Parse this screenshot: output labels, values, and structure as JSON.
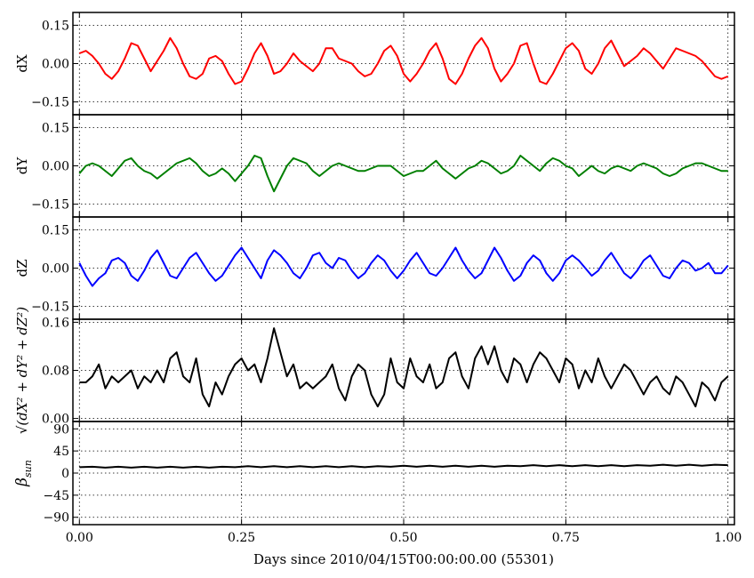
{
  "chart_data": {
    "type": "line",
    "xlabel": "Days since 2010/04/15T00:00:00.00 (55301)",
    "xlim": [
      -0.01,
      1.01
    ],
    "xticks": [
      0.0,
      0.25,
      0.5,
      0.75,
      1.0
    ],
    "xtick_labels": [
      "0.00",
      "0.25",
      "0.50",
      "0.75",
      "1.00"
    ],
    "grid": true,
    "panels": [
      {
        "id": "dx",
        "ylabel": "dX",
        "ylim": [
          -0.2,
          0.2
        ],
        "yticks": [
          -0.15,
          0.0,
          0.15
        ],
        "ytick_labels": [
          "−0.15",
          "0.00",
          "0.15"
        ],
        "color": "#ff0000",
        "x": [
          0.0,
          0.01,
          0.02,
          0.03,
          0.04,
          0.05,
          0.06,
          0.07,
          0.08,
          0.09,
          0.1,
          0.11,
          0.12,
          0.13,
          0.14,
          0.15,
          0.16,
          0.17,
          0.18,
          0.19,
          0.2,
          0.21,
          0.22,
          0.23,
          0.24,
          0.25,
          0.26,
          0.27,
          0.28,
          0.29,
          0.3,
          0.31,
          0.32,
          0.33,
          0.34,
          0.35,
          0.36,
          0.37,
          0.38,
          0.39,
          0.4,
          0.41,
          0.42,
          0.43,
          0.44,
          0.45,
          0.46,
          0.47,
          0.48,
          0.49,
          0.5,
          0.51,
          0.52,
          0.53,
          0.54,
          0.55,
          0.56,
          0.57,
          0.58,
          0.59,
          0.6,
          0.61,
          0.62,
          0.63,
          0.64,
          0.65,
          0.66,
          0.67,
          0.68,
          0.69,
          0.7,
          0.71,
          0.72,
          0.73,
          0.74,
          0.75,
          0.76,
          0.77,
          0.78,
          0.79,
          0.8,
          0.81,
          0.82,
          0.83,
          0.84,
          0.85,
          0.86,
          0.87,
          0.88,
          0.89,
          0.9,
          0.91,
          0.92,
          0.93,
          0.94,
          0.95,
          0.96,
          0.97,
          0.98,
          0.99,
          1.0
        ],
        "y": [
          0.04,
          0.05,
          0.03,
          0.0,
          -0.04,
          -0.06,
          -0.03,
          0.02,
          0.08,
          0.07,
          0.02,
          -0.03,
          0.01,
          0.05,
          0.1,
          0.06,
          0.0,
          -0.05,
          -0.06,
          -0.04,
          0.02,
          0.03,
          0.01,
          -0.04,
          -0.08,
          -0.07,
          -0.02,
          0.04,
          0.08,
          0.03,
          -0.04,
          -0.03,
          0.0,
          0.04,
          0.01,
          -0.01,
          -0.03,
          0.0,
          0.06,
          0.06,
          0.02,
          0.01,
          0.0,
          -0.03,
          -0.05,
          -0.04,
          0.0,
          0.05,
          0.07,
          0.03,
          -0.04,
          -0.07,
          -0.04,
          0.0,
          0.05,
          0.08,
          0.02,
          -0.06,
          -0.08,
          -0.04,
          0.02,
          0.07,
          0.1,
          0.06,
          -0.02,
          -0.07,
          -0.04,
          0.0,
          0.07,
          0.08,
          0.0,
          -0.07,
          -0.08,
          -0.04,
          0.01,
          0.06,
          0.08,
          0.05,
          -0.02,
          -0.04,
          0.0,
          0.06,
          0.09,
          0.04,
          -0.01,
          0.01,
          0.03,
          0.06,
          0.04,
          0.01,
          -0.02,
          0.02,
          0.06,
          0.05,
          0.04,
          0.03,
          0.01,
          -0.02,
          -0.05,
          -0.06,
          -0.05
        ]
      },
      {
        "id": "dy",
        "ylabel": "dY",
        "ylim": [
          -0.2,
          0.2
        ],
        "yticks": [
          -0.15,
          0.0,
          0.15
        ],
        "ytick_labels": [
          "−0.15",
          "0.00",
          "0.15"
        ],
        "color": "#007f00",
        "x": [
          0.0,
          0.01,
          0.02,
          0.03,
          0.04,
          0.05,
          0.06,
          0.07,
          0.08,
          0.09,
          0.1,
          0.11,
          0.12,
          0.13,
          0.14,
          0.15,
          0.16,
          0.17,
          0.18,
          0.19,
          0.2,
          0.21,
          0.22,
          0.23,
          0.24,
          0.25,
          0.26,
          0.27,
          0.28,
          0.29,
          0.3,
          0.31,
          0.32,
          0.33,
          0.34,
          0.35,
          0.36,
          0.37,
          0.38,
          0.39,
          0.4,
          0.41,
          0.42,
          0.43,
          0.44,
          0.45,
          0.46,
          0.47,
          0.48,
          0.49,
          0.5,
          0.51,
          0.52,
          0.53,
          0.54,
          0.55,
          0.56,
          0.57,
          0.58,
          0.59,
          0.6,
          0.61,
          0.62,
          0.63,
          0.64,
          0.65,
          0.66,
          0.67,
          0.68,
          0.69,
          0.7,
          0.71,
          0.72,
          0.73,
          0.74,
          0.75,
          0.76,
          0.77,
          0.78,
          0.79,
          0.8,
          0.81,
          0.82,
          0.83,
          0.84,
          0.85,
          0.86,
          0.87,
          0.88,
          0.89,
          0.9,
          0.91,
          0.92,
          0.93,
          0.94,
          0.95,
          0.96,
          0.97,
          0.98,
          0.99,
          1.0
        ],
        "y": [
          -0.03,
          0.0,
          0.01,
          0.0,
          -0.02,
          -0.04,
          -0.01,
          0.02,
          0.03,
          0.0,
          -0.02,
          -0.03,
          -0.05,
          -0.03,
          -0.01,
          0.01,
          0.02,
          0.03,
          0.01,
          -0.02,
          -0.04,
          -0.03,
          -0.01,
          -0.03,
          -0.06,
          -0.03,
          0.0,
          0.04,
          0.03,
          -0.04,
          -0.1,
          -0.05,
          0.0,
          0.03,
          0.02,
          0.01,
          -0.02,
          -0.04,
          -0.02,
          0.0,
          0.01,
          0.0,
          -0.01,
          -0.02,
          -0.02,
          -0.01,
          0.0,
          0.0,
          0.0,
          -0.02,
          -0.04,
          -0.03,
          -0.02,
          -0.02,
          0.0,
          0.02,
          -0.01,
          -0.03,
          -0.05,
          -0.03,
          -0.01,
          0.0,
          0.02,
          0.01,
          -0.01,
          -0.03,
          -0.02,
          0.0,
          0.04,
          0.02,
          0.0,
          -0.02,
          0.01,
          0.03,
          0.02,
          0.0,
          -0.01,
          -0.04,
          -0.02,
          0.0,
          -0.02,
          -0.03,
          -0.01,
          0.0,
          -0.01,
          -0.02,
          0.0,
          0.01,
          0.0,
          -0.01,
          -0.03,
          -0.04,
          -0.03,
          -0.01,
          0.0,
          0.01,
          0.01,
          0.0,
          -0.01,
          -0.02,
          -0.02
        ]
      },
      {
        "id": "dz",
        "ylabel": "dZ",
        "ylim": [
          -0.2,
          0.2
        ],
        "yticks": [
          -0.15,
          0.0,
          0.15
        ],
        "ytick_labels": [
          "−0.15",
          "0.00",
          "0.15"
        ],
        "color": "#0000ff",
        "x": [
          0.0,
          0.01,
          0.02,
          0.03,
          0.04,
          0.05,
          0.06,
          0.07,
          0.08,
          0.09,
          0.1,
          0.11,
          0.12,
          0.13,
          0.14,
          0.15,
          0.16,
          0.17,
          0.18,
          0.19,
          0.2,
          0.21,
          0.22,
          0.23,
          0.24,
          0.25,
          0.26,
          0.27,
          0.28,
          0.29,
          0.3,
          0.31,
          0.32,
          0.33,
          0.34,
          0.35,
          0.36,
          0.37,
          0.38,
          0.39,
          0.4,
          0.41,
          0.42,
          0.43,
          0.44,
          0.45,
          0.46,
          0.47,
          0.48,
          0.49,
          0.5,
          0.51,
          0.52,
          0.53,
          0.54,
          0.55,
          0.56,
          0.57,
          0.58,
          0.59,
          0.6,
          0.61,
          0.62,
          0.63,
          0.64,
          0.65,
          0.66,
          0.67,
          0.68,
          0.69,
          0.7,
          0.71,
          0.72,
          0.73,
          0.74,
          0.75,
          0.76,
          0.77,
          0.78,
          0.79,
          0.8,
          0.81,
          0.82,
          0.83,
          0.84,
          0.85,
          0.86,
          0.87,
          0.88,
          0.89,
          0.9,
          0.91,
          0.92,
          0.93,
          0.94,
          0.95,
          0.96,
          0.97,
          0.98,
          0.99,
          1.0
        ],
        "y": [
          0.02,
          -0.03,
          -0.07,
          -0.04,
          -0.02,
          0.03,
          0.04,
          0.02,
          -0.03,
          -0.05,
          -0.01,
          0.04,
          0.07,
          0.02,
          -0.03,
          -0.04,
          0.0,
          0.04,
          0.06,
          0.02,
          -0.02,
          -0.05,
          -0.03,
          0.01,
          0.05,
          0.08,
          0.04,
          0.0,
          -0.04,
          0.03,
          0.07,
          0.05,
          0.02,
          -0.02,
          -0.04,
          0.0,
          0.05,
          0.06,
          0.02,
          0.0,
          0.04,
          0.03,
          -0.01,
          -0.04,
          -0.02,
          0.02,
          0.05,
          0.03,
          -0.01,
          -0.04,
          -0.01,
          0.03,
          0.06,
          0.02,
          -0.02,
          -0.03,
          0.0,
          0.04,
          0.08,
          0.03,
          -0.01,
          -0.04,
          -0.02,
          0.03,
          0.08,
          0.04,
          -0.01,
          -0.05,
          -0.03,
          0.02,
          0.05,
          0.03,
          -0.02,
          -0.05,
          -0.02,
          0.03,
          0.05,
          0.03,
          0.0,
          -0.03,
          -0.01,
          0.03,
          0.06,
          0.02,
          -0.02,
          -0.04,
          -0.01,
          0.03,
          0.05,
          0.01,
          -0.03,
          -0.04,
          0.0,
          0.03,
          0.02,
          -0.01,
          0.0,
          0.02,
          -0.02,
          -0.02,
          0.01
        ]
      },
      {
        "id": "dr",
        "ylabel": "√(dX² + dY² + dZ²)",
        "ylim": [
          -0.005,
          0.165
        ],
        "yticks": [
          0.0,
          0.08,
          0.16
        ],
        "ytick_labels": [
          "0.00",
          "0.08",
          "0.16"
        ],
        "color": "#000000",
        "x": [
          0.0,
          0.01,
          0.02,
          0.03,
          0.04,
          0.05,
          0.06,
          0.07,
          0.08,
          0.09,
          0.1,
          0.11,
          0.12,
          0.13,
          0.14,
          0.15,
          0.16,
          0.17,
          0.18,
          0.19,
          0.2,
          0.21,
          0.22,
          0.23,
          0.24,
          0.25,
          0.26,
          0.27,
          0.28,
          0.29,
          0.3,
          0.31,
          0.32,
          0.33,
          0.34,
          0.35,
          0.36,
          0.37,
          0.38,
          0.39,
          0.4,
          0.41,
          0.42,
          0.43,
          0.44,
          0.45,
          0.46,
          0.47,
          0.48,
          0.49,
          0.5,
          0.51,
          0.52,
          0.53,
          0.54,
          0.55,
          0.56,
          0.57,
          0.58,
          0.59,
          0.6,
          0.61,
          0.62,
          0.63,
          0.64,
          0.65,
          0.66,
          0.67,
          0.68,
          0.69,
          0.7,
          0.71,
          0.72,
          0.73,
          0.74,
          0.75,
          0.76,
          0.77,
          0.78,
          0.79,
          0.8,
          0.81,
          0.82,
          0.83,
          0.84,
          0.85,
          0.86,
          0.87,
          0.88,
          0.89,
          0.9,
          0.91,
          0.92,
          0.93,
          0.94,
          0.95,
          0.96,
          0.97,
          0.98,
          0.99,
          1.0
        ],
        "y": [
          0.06,
          0.06,
          0.07,
          0.09,
          0.05,
          0.07,
          0.06,
          0.07,
          0.08,
          0.05,
          0.07,
          0.06,
          0.08,
          0.06,
          0.1,
          0.11,
          0.07,
          0.06,
          0.1,
          0.04,
          0.02,
          0.06,
          0.04,
          0.07,
          0.09,
          0.1,
          0.08,
          0.09,
          0.06,
          0.1,
          0.15,
          0.11,
          0.07,
          0.09,
          0.05,
          0.06,
          0.05,
          0.06,
          0.07,
          0.09,
          0.05,
          0.03,
          0.07,
          0.09,
          0.08,
          0.04,
          0.02,
          0.04,
          0.1,
          0.06,
          0.05,
          0.1,
          0.07,
          0.06,
          0.09,
          0.05,
          0.06,
          0.1,
          0.11,
          0.07,
          0.05,
          0.1,
          0.12,
          0.09,
          0.12,
          0.08,
          0.06,
          0.1,
          0.09,
          0.06,
          0.09,
          0.11,
          0.1,
          0.08,
          0.06,
          0.1,
          0.09,
          0.05,
          0.08,
          0.06,
          0.1,
          0.07,
          0.05,
          0.07,
          0.09,
          0.08,
          0.06,
          0.04,
          0.06,
          0.07,
          0.05,
          0.04,
          0.07,
          0.06,
          0.04,
          0.02,
          0.06,
          0.05,
          0.03,
          0.06,
          0.07
        ]
      },
      {
        "id": "beta",
        "ylabel": "βsun",
        "ylim": [
          -105,
          105
        ],
        "yticks": [
          -90,
          -45,
          0,
          45,
          90
        ],
        "ytick_labels": [
          "−90",
          "−45",
          "0",
          "45",
          "90"
        ],
        "color": "#000000",
        "x": [
          0.0,
          0.02,
          0.04,
          0.06,
          0.08,
          0.1,
          0.12,
          0.14,
          0.16,
          0.18,
          0.2,
          0.22,
          0.24,
          0.26,
          0.28,
          0.3,
          0.32,
          0.34,
          0.36,
          0.38,
          0.4,
          0.42,
          0.44,
          0.46,
          0.48,
          0.5,
          0.52,
          0.54,
          0.56,
          0.58,
          0.6,
          0.62,
          0.64,
          0.66,
          0.68,
          0.7,
          0.72,
          0.74,
          0.76,
          0.78,
          0.8,
          0.82,
          0.84,
          0.86,
          0.88,
          0.9,
          0.92,
          0.94,
          0.96,
          0.98,
          1.0
        ],
        "y": [
          12,
          13,
          11,
          13,
          11,
          13,
          11,
          13,
          11,
          13,
          11,
          13,
          12,
          14,
          12,
          14,
          12,
          14,
          12,
          14,
          12,
          14,
          12,
          14,
          13,
          15,
          13,
          15,
          13,
          15,
          13,
          15,
          13,
          15,
          14,
          16,
          14,
          16,
          14,
          16,
          14,
          16,
          14,
          16,
          15,
          17,
          15,
          17,
          15,
          17,
          16
        ]
      }
    ]
  }
}
